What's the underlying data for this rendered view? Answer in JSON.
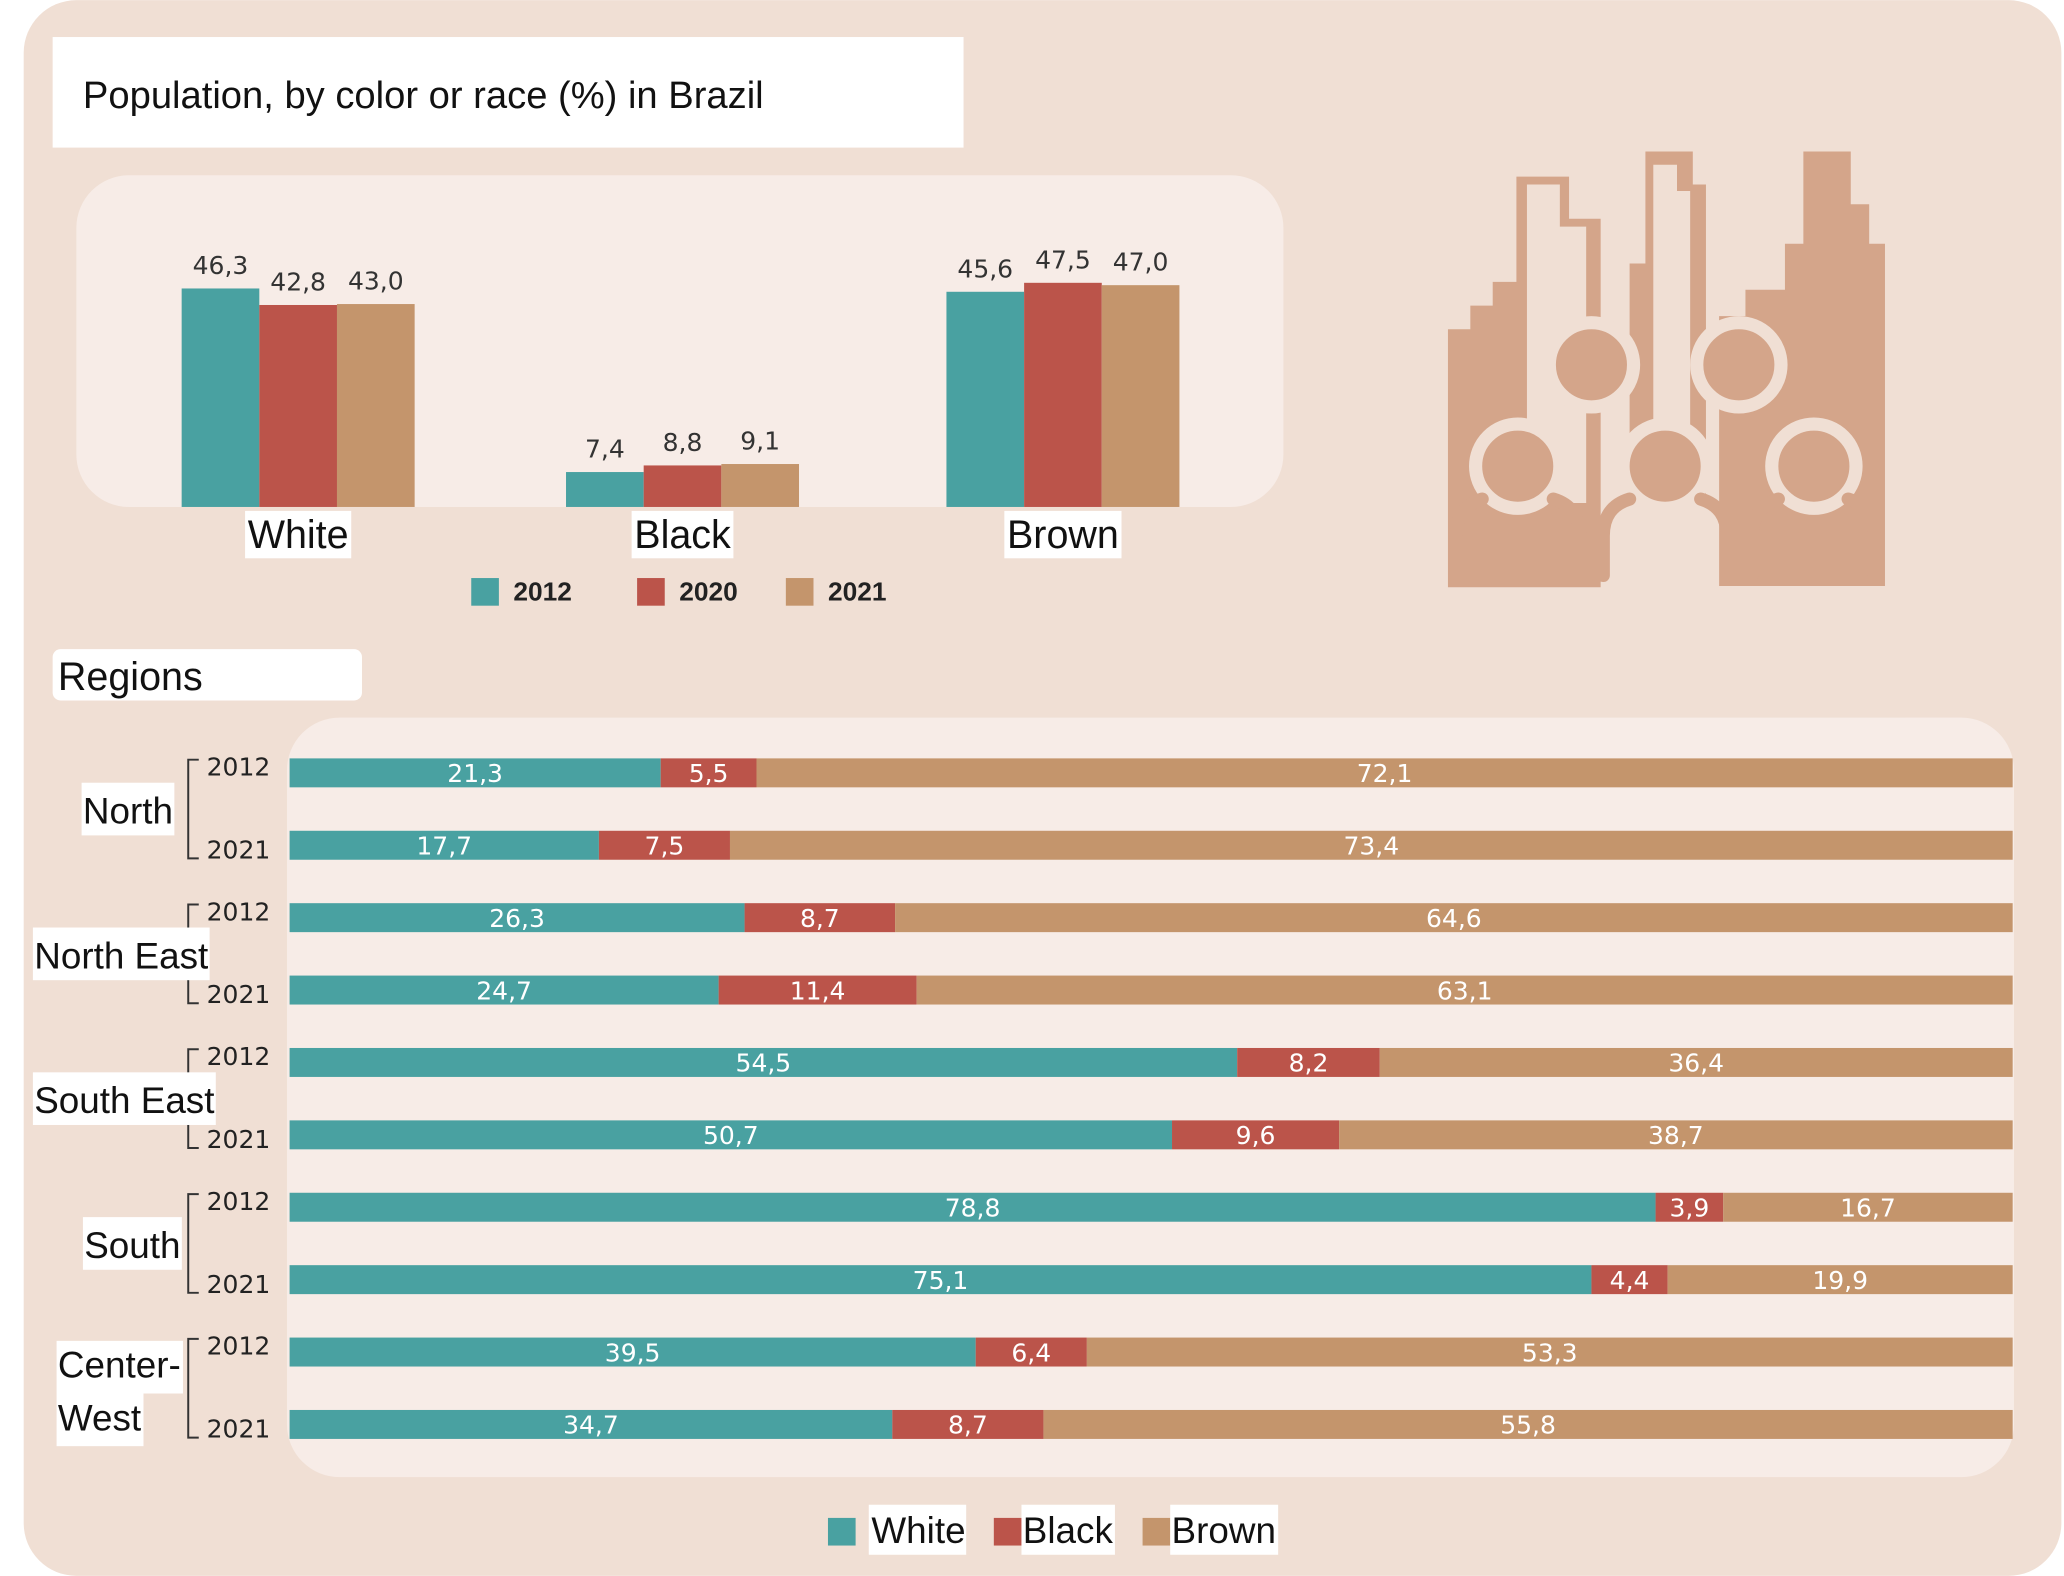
{
  "title": "Population, by color or race (%) in Brazil",
  "colors": {
    "white": "#49a1a1",
    "black": "#bb544a",
    "brown": "#c4956c",
    "icon": "#d4a58a",
    "background": "#f0dfd4",
    "panel": "#f7ece7"
  },
  "icon": "city-people-icon",
  "chart_data": [
    {
      "type": "bar",
      "categories": [
        "White",
        "Black",
        "Brown"
      ],
      "series": [
        {
          "name": "2012",
          "values": [
            46.3,
            7.4,
            45.6
          ],
          "labels": [
            "46,3",
            "7,4",
            "45,6"
          ]
        },
        {
          "name": "2020",
          "values": [
            42.8,
            8.8,
            47.5
          ],
          "labels": [
            "42,8",
            "8,8",
            "47,5"
          ]
        },
        {
          "name": "2021",
          "values": [
            43.0,
            9.1,
            47.0
          ],
          "labels": [
            "43,0",
            "9,1",
            "47,0"
          ]
        }
      ],
      "legend": "bottom",
      "grid": false
    },
    {
      "type": "bar",
      "orientation": "horizontal-stacked",
      "title": "Regions",
      "regions": [
        {
          "name": "North",
          "rows": [
            {
              "year": "2012",
              "values": [
                21.3,
                5.5,
                72.1
              ],
              "labels": [
                "21,3",
                "5,5",
                "72,1"
              ]
            },
            {
              "year": "2021",
              "values": [
                17.7,
                7.5,
                73.4
              ],
              "labels": [
                "17,7",
                "7,5",
                "73,4"
              ]
            }
          ]
        },
        {
          "name": "North East",
          "rows": [
            {
              "year": "2012",
              "values": [
                26.3,
                8.7,
                64.6
              ],
              "labels": [
                "26,3",
                "8,7",
                "64,6"
              ]
            },
            {
              "year": "2021",
              "values": [
                24.7,
                11.4,
                63.1
              ],
              "labels": [
                "24,7",
                "11,4",
                "63,1"
              ]
            }
          ]
        },
        {
          "name": "South East",
          "rows": [
            {
              "year": "2012",
              "values": [
                54.5,
                8.2,
                36.4
              ],
              "labels": [
                "54,5",
                "8,2",
                "36,4"
              ]
            },
            {
              "year": "2021",
              "values": [
                50.7,
                9.6,
                38.7
              ],
              "labels": [
                "50,7",
                "9,6",
                "38,7"
              ]
            }
          ]
        },
        {
          "name": "South",
          "rows": [
            {
              "year": "2012",
              "values": [
                78.8,
                3.9,
                16.7
              ],
              "labels": [
                "78,8",
                "3,9",
                "16,7"
              ]
            },
            {
              "year": "2021",
              "values": [
                75.1,
                4.4,
                19.9
              ],
              "labels": [
                "75,1",
                "4,4",
                "19,9"
              ]
            }
          ]
        },
        {
          "name_lines": [
            "Center-",
            "West"
          ],
          "rows": [
            {
              "year": "2012",
              "values": [
                39.5,
                6.4,
                53.3
              ],
              "labels": [
                "39,5",
                "6,4",
                "53,3"
              ]
            },
            {
              "year": "2021",
              "values": [
                34.7,
                8.7,
                55.8
              ],
              "labels": [
                "34,7",
                "8,7",
                "55,8"
              ]
            }
          ]
        }
      ],
      "series_names": [
        "White",
        "Black",
        "Brown"
      ],
      "legend": "bottom",
      "grid": false
    }
  ]
}
